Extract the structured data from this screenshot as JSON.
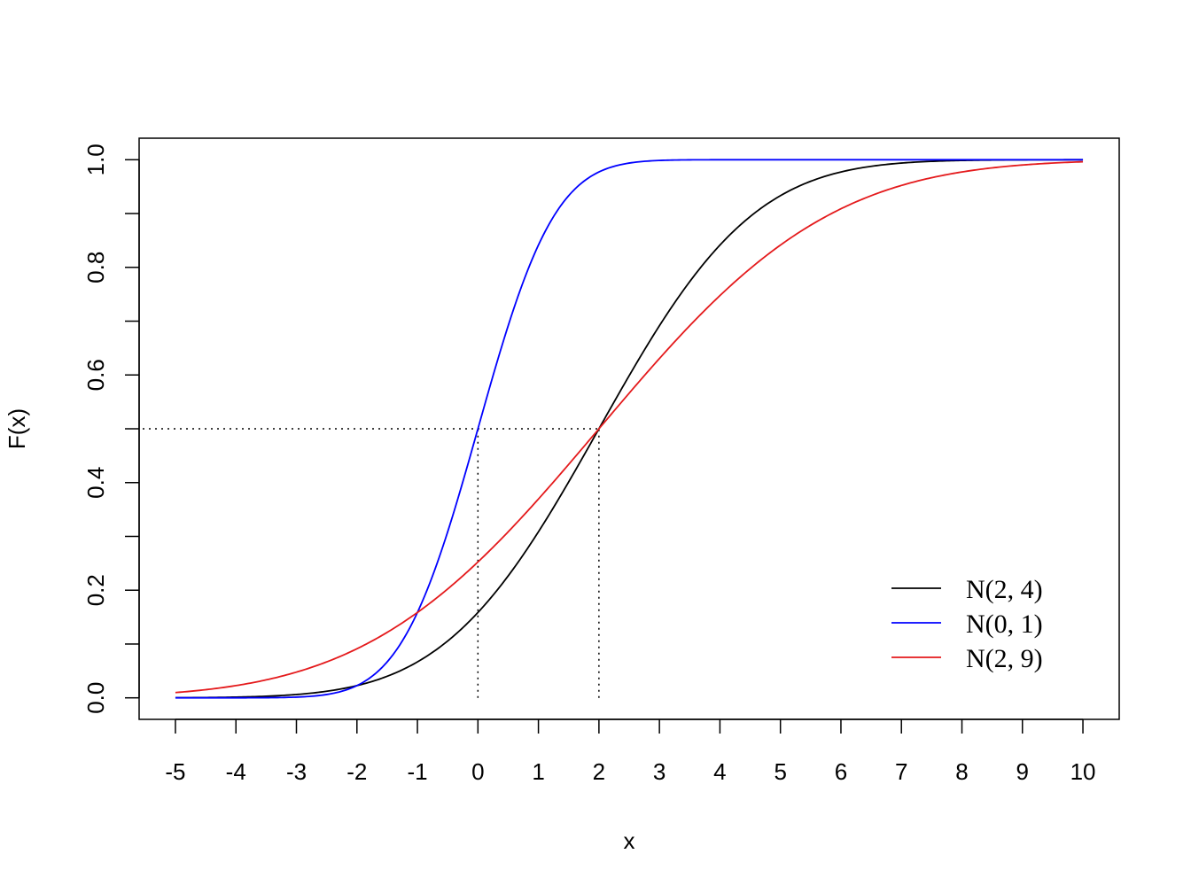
{
  "chart_data": {
    "type": "line",
    "title": "",
    "xlabel": "x",
    "ylabel": "F(x)",
    "xlim": [
      -5.6,
      10.6
    ],
    "ylim": [
      -0.04,
      1.04
    ],
    "x_ticks": [
      -5,
      -4,
      -3,
      -2,
      -1,
      0,
      1,
      2,
      3,
      4,
      5,
      6,
      7,
      8,
      9,
      10
    ],
    "x_tick_labels": [
      "-5",
      "-4",
      "-3",
      "-2",
      "-1",
      "0",
      "1",
      "2",
      "3",
      "4",
      "5",
      "6",
      "7",
      "8",
      "9",
      "10"
    ],
    "y_ticks": [
      0.0,
      0.2,
      0.4,
      0.6,
      0.8,
      1.0
    ],
    "y_tick_labels": [
      "0.0",
      "0.2",
      "0.4",
      "0.6",
      "0.8",
      "1.0"
    ],
    "y_minor_ticks": [
      0.1,
      0.3,
      0.5,
      0.7,
      0.9
    ],
    "series": [
      {
        "name": "N(2, 4)",
        "distribution": "normal",
        "mean": 2,
        "variance": 4,
        "sd": 2,
        "x_range": [
          -5,
          10
        ],
        "color": "#000000"
      },
      {
        "name": "N(0, 1)",
        "distribution": "normal",
        "mean": 0,
        "variance": 1,
        "sd": 1,
        "x_range": [
          -5,
          10
        ],
        "color": "#0000ff"
      },
      {
        "name": "N(2, 9)",
        "distribution": "normal",
        "mean": 2,
        "variance": 9,
        "sd": 3,
        "x_range": [
          -5,
          10
        ],
        "color": "#e41a1c"
      }
    ],
    "reference_lines": [
      {
        "kind": "horizontal",
        "y": 0.5,
        "from_x": -5.6,
        "to_x": 2,
        "style": "dotted"
      },
      {
        "kind": "vertical",
        "x": 0,
        "from_y": 0,
        "to_y": 0.5,
        "style": "dotted"
      },
      {
        "kind": "vertical",
        "x": 2,
        "from_y": 0,
        "to_y": 0.5,
        "style": "dotted"
      }
    ],
    "legend": {
      "position": "bottom-right",
      "entries": [
        "N(2, 4)",
        "N(0, 1)",
        "N(2, 9)"
      ]
    },
    "grid": false
  }
}
